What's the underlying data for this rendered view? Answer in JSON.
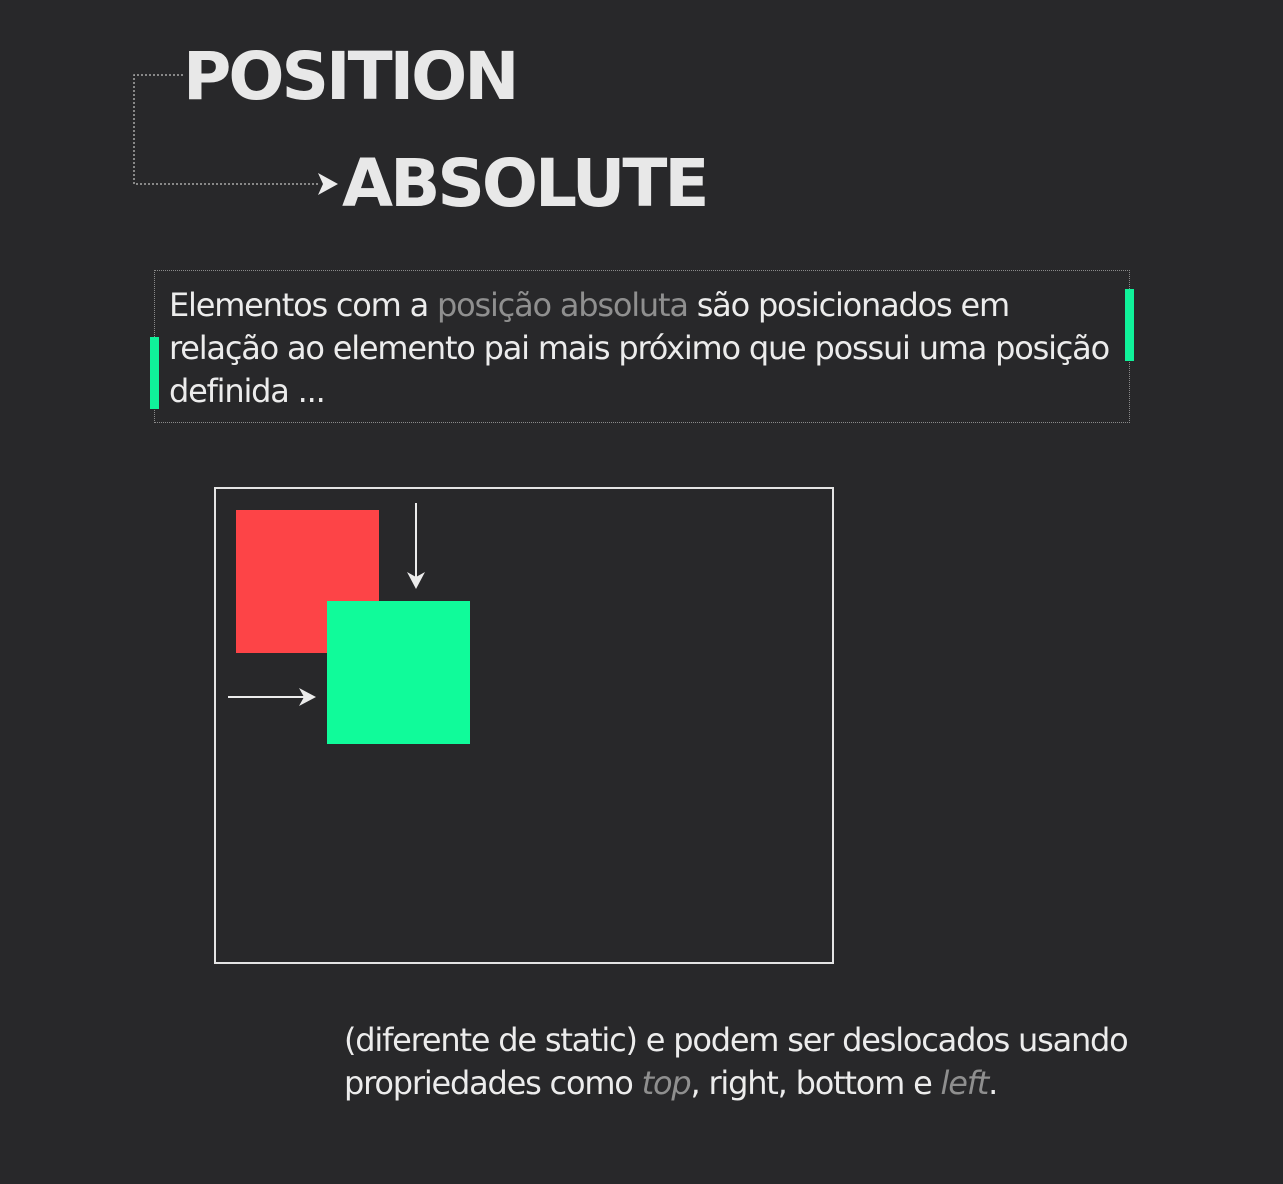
{
  "title": {
    "line1": "POSITION",
    "line2": "ABSOLUTE"
  },
  "description": {
    "part1": "Elementos com a ",
    "highlight": "posição absoluta",
    "part2": " são posicionados em relação ao elemento pai mais próximo que possui uma posição definida ..."
  },
  "footer": {
    "part1": "(diferente de static) e podem ser deslocados usando propriedades como ",
    "keyword_top": "top",
    "part2": ", right, bottom e ",
    "keyword_left": "left",
    "part3": "."
  },
  "colors": {
    "background": "#28282a",
    "accent": "#10f29a",
    "red_box": "#fd4447",
    "green_box": "#10fb9a",
    "highlight_text": "#8f8f8f"
  }
}
